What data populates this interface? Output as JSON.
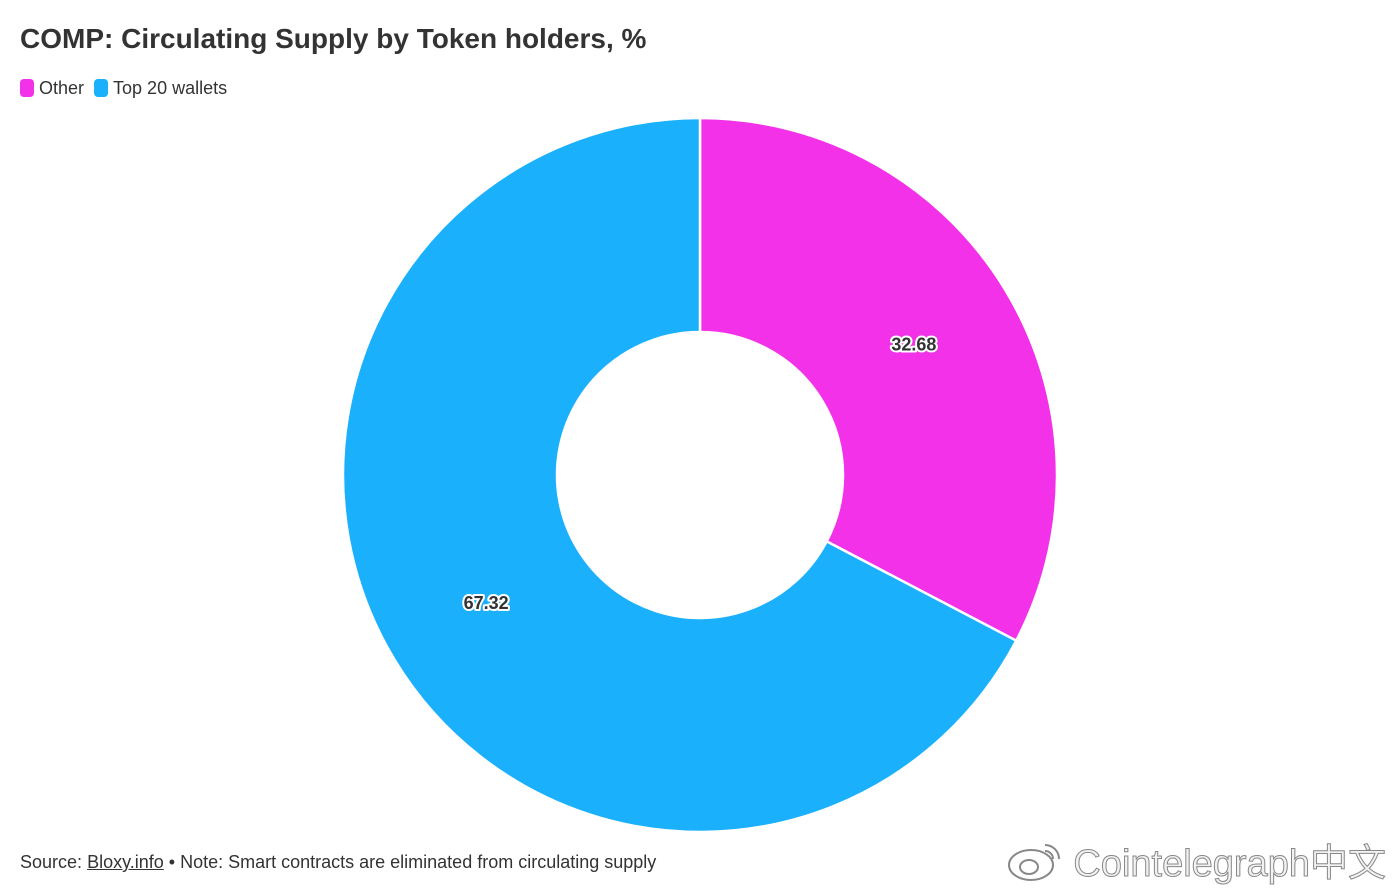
{
  "chart_data": {
    "type": "donut",
    "title": "COMP: Circulating Supply by Token holders, %",
    "categories": [
      "Other",
      "Top 20 wallets"
    ],
    "values": [
      32.68,
      67.32
    ],
    "colors": [
      "#f331e8",
      "#1ab0fc"
    ],
    "legend": "top-left",
    "source_label": "Source:",
    "source_link": "Bloxy.info",
    "note": "• Note: Smart contracts are eliminated from circulating supply",
    "watermark": "Cointelegraph中文"
  }
}
